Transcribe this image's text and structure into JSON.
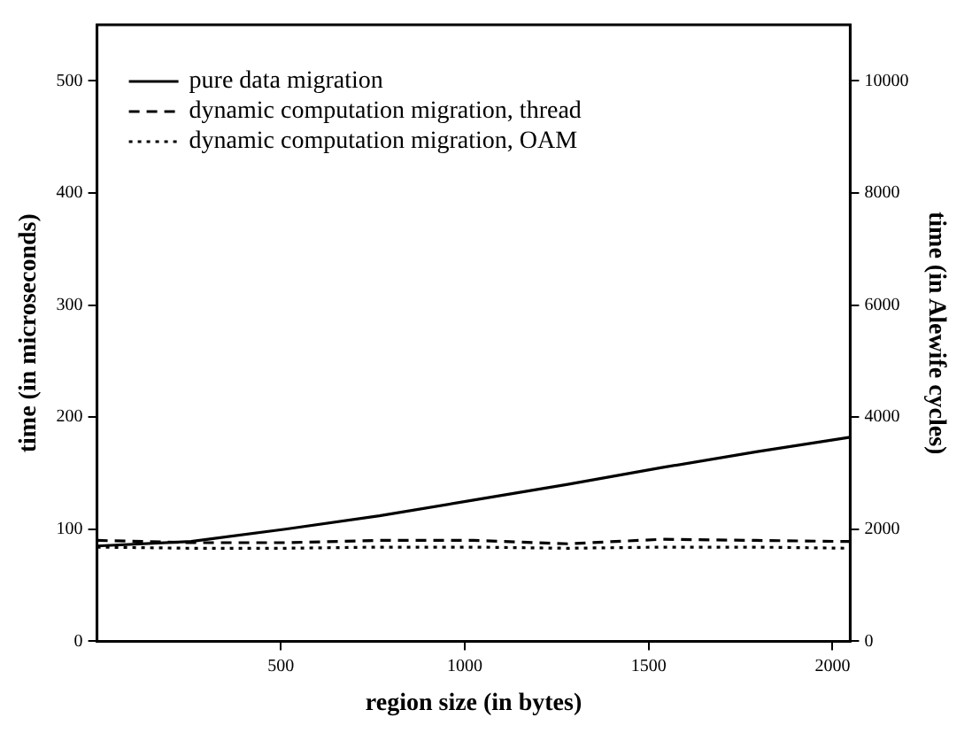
{
  "chart_data": {
    "type": "line",
    "xlabel": "region size (in bytes)",
    "ylabel": "time (in microseconds)",
    "y2label": "time (in Alewife cycles)",
    "x": [
      0,
      256,
      512,
      768,
      1024,
      1280,
      1536,
      1792,
      2048
    ],
    "series": [
      {
        "name": "pure data migration",
        "color": "#000000",
        "line_style": "solid",
        "values": [
          85,
          89,
          100,
          112,
          126,
          140,
          155,
          169,
          182
        ]
      },
      {
        "name": "dynamic computation migration, thread",
        "color": "#000000",
        "line_style": "dashed",
        "values": [
          90,
          88,
          88,
          90,
          90,
          87,
          91,
          90,
          89
        ]
      },
      {
        "name": "dynamic computation migration, OAM",
        "color": "#000000",
        "line_style": "dotted",
        "values": [
          84,
          83,
          83,
          84,
          84,
          83,
          84,
          84,
          83
        ]
      }
    ],
    "xlim": [
      0,
      2048
    ],
    "xticks": [
      500,
      1000,
      1500,
      2000
    ],
    "ylim": [
      0,
      550
    ],
    "yticks": [
      0,
      100,
      200,
      300,
      400,
      500
    ],
    "y2lim": [
      0,
      11000
    ],
    "y2ticks": [
      0,
      2000,
      4000,
      6000,
      8000,
      10000
    ],
    "grid": false,
    "legend": "top left",
    "marker": "none"
  }
}
